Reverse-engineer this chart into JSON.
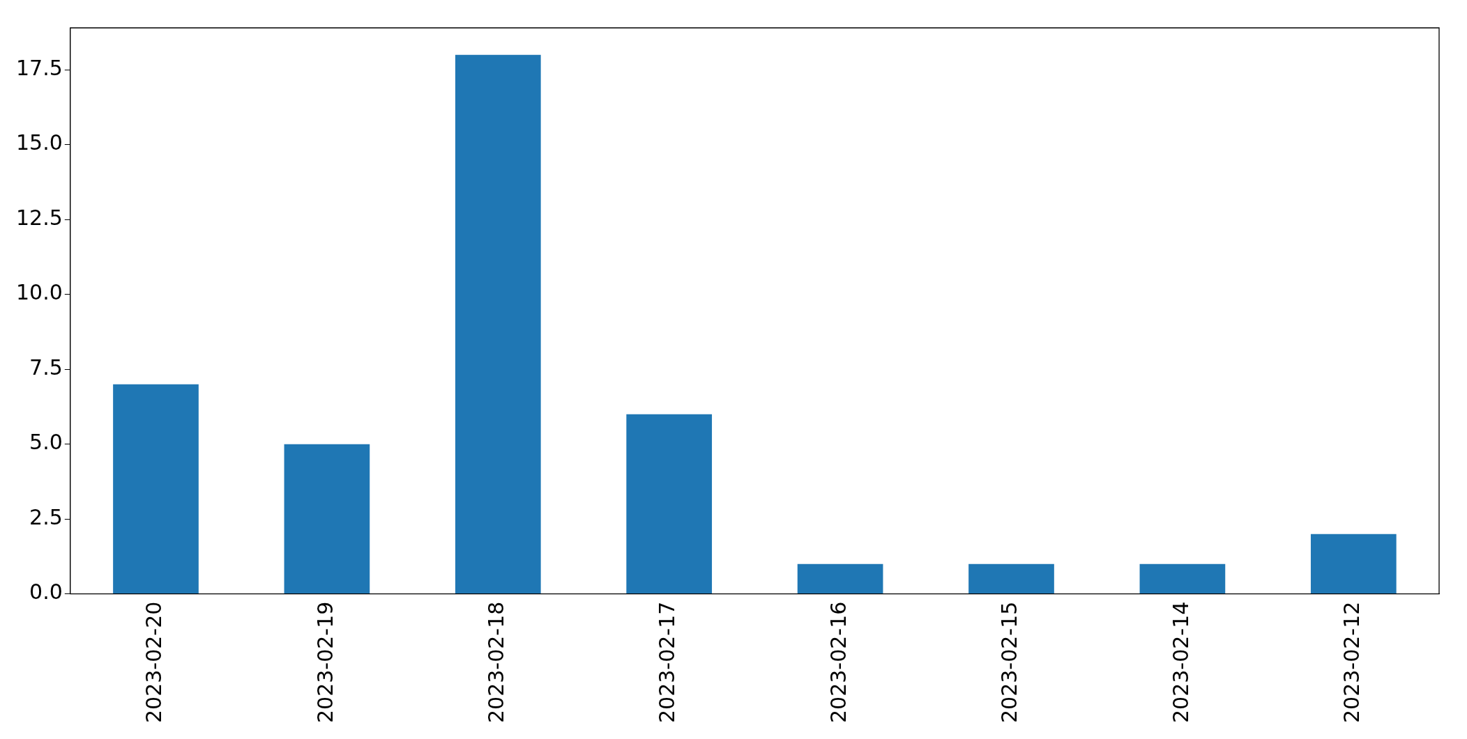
{
  "chart_data": {
    "type": "bar",
    "categories": [
      "2023-02-20",
      "2023-02-19",
      "2023-02-18",
      "2023-02-17",
      "2023-02-16",
      "2023-02-15",
      "2023-02-14",
      "2023-02-12"
    ],
    "values": [
      7,
      5,
      18,
      6,
      1,
      1,
      1,
      2
    ],
    "color": "#1f77b4",
    "ylim": [
      0,
      18.9
    ],
    "yticks": [
      {
        "value": 0,
        "label": "0.0"
      },
      {
        "value": 2.5,
        "label": "2.5"
      },
      {
        "value": 5,
        "label": "5.0"
      },
      {
        "value": 7.5,
        "label": "7.5"
      },
      {
        "value": 10,
        "label": "10.0"
      },
      {
        "value": 12.5,
        "label": "12.5"
      },
      {
        "value": 15,
        "label": "15.0"
      },
      {
        "value": 17.5,
        "label": "17.5"
      }
    ],
    "grid": false,
    "legend": false
  }
}
